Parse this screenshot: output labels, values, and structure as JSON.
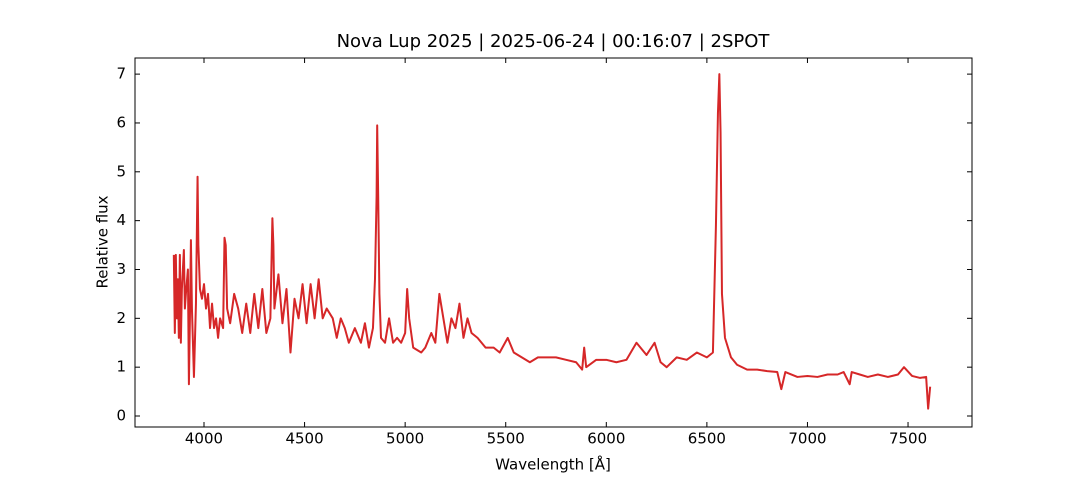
{
  "chart_data": {
    "type": "line",
    "title": "Nova Lup 2025 | 2025-06-24 | 00:16:07 | 2SPOT",
    "x_label": "Wavelength [Å]",
    "y_label": "Relative flux",
    "xlim": [
      3657,
      7818
    ],
    "ylim": [
      -0.225,
      7.33
    ],
    "xticks": [
      4000,
      4500,
      5000,
      5500,
      6000,
      6500,
      7000,
      7500
    ],
    "yticks": [
      0,
      1,
      2,
      3,
      4,
      5,
      6,
      7
    ],
    "series": [
      {
        "color": "#d62728",
        "x": [
          3850,
          3855,
          3860,
          3865,
          3870,
          3875,
          3880,
          3885,
          3890,
          3900,
          3905,
          3910,
          3920,
          3925,
          3930,
          3935,
          3940,
          3950,
          3960,
          3968,
          3972,
          3980,
          3990,
          4000,
          4010,
          4020,
          4030,
          4040,
          4050,
          4060,
          4070,
          4080,
          4095,
          4102,
          4108,
          4115,
          4130,
          4150,
          4170,
          4190,
          4210,
          4230,
          4250,
          4270,
          4290,
          4310,
          4330,
          4340,
          4345,
          4350,
          4370,
          4390,
          4410,
          4430,
          4450,
          4470,
          4490,
          4510,
          4530,
          4550,
          4570,
          4590,
          4610,
          4640,
          4660,
          4680,
          4700,
          4720,
          4750,
          4780,
          4800,
          4820,
          4840,
          4850,
          4858,
          4861,
          4866,
          4872,
          4880,
          4900,
          4920,
          4940,
          4960,
          4980,
          5000,
          5010,
          5020,
          5040,
          5080,
          5100,
          5130,
          5150,
          5170,
          5190,
          5210,
          5230,
          5250,
          5270,
          5290,
          5310,
          5330,
          5360,
          5400,
          5440,
          5470,
          5510,
          5540,
          5580,
          5620,
          5660,
          5700,
          5750,
          5800,
          5850,
          5880,
          5890,
          5900,
          5950,
          6000,
          6050,
          6100,
          6150,
          6200,
          6240,
          6270,
          6300,
          6350,
          6400,
          6450,
          6500,
          6530,
          6545,
          6555,
          6562,
          6568,
          6575,
          6590,
          6620,
          6650,
          6700,
          6750,
          6800,
          6850,
          6870,
          6890,
          6950,
          7000,
          7050,
          7100,
          7150,
          7180,
          7210,
          7220,
          7260,
          7300,
          7350,
          7400,
          7450,
          7480,
          7520,
          7560,
          7590,
          7600,
          7610
        ],
        "values": [
          3.3,
          1.7,
          3.3,
          2.0,
          2.8,
          1.6,
          3.3,
          1.5,
          2.6,
          3.4,
          2.2,
          2.5,
          3.0,
          0.65,
          2.0,
          3.6,
          2.2,
          0.8,
          2.3,
          4.9,
          3.5,
          2.6,
          2.4,
          2.7,
          2.2,
          2.5,
          1.8,
          2.3,
          1.8,
          2.0,
          1.6,
          2.0,
          1.8,
          3.65,
          3.5,
          2.2,
          1.9,
          2.5,
          2.2,
          1.7,
          2.3,
          1.7,
          2.5,
          1.8,
          2.6,
          1.7,
          2.0,
          4.05,
          3.5,
          2.2,
          2.9,
          1.9,
          2.6,
          1.3,
          2.4,
          2.0,
          2.7,
          1.9,
          2.7,
          2.0,
          2.8,
          2.0,
          2.2,
          2.0,
          1.6,
          2.0,
          1.8,
          1.5,
          1.8,
          1.5,
          1.9,
          1.4,
          1.8,
          2.8,
          4.5,
          5.95,
          4.5,
          2.5,
          1.6,
          1.5,
          2.0,
          1.5,
          1.6,
          1.5,
          1.7,
          2.6,
          2.0,
          1.4,
          1.3,
          1.4,
          1.7,
          1.5,
          2.5,
          2.0,
          1.5,
          2.0,
          1.8,
          2.3,
          1.6,
          2.0,
          1.7,
          1.6,
          1.4,
          1.4,
          1.3,
          1.6,
          1.3,
          1.2,
          1.1,
          1.2,
          1.2,
          1.2,
          1.15,
          1.1,
          0.95,
          1.4,
          1.0,
          1.15,
          1.15,
          1.1,
          1.15,
          1.5,
          1.25,
          1.5,
          1.1,
          1.0,
          1.2,
          1.15,
          1.3,
          1.2,
          1.3,
          3.9,
          6.2,
          7.0,
          5.8,
          2.5,
          1.6,
          1.2,
          1.05,
          0.95,
          0.95,
          0.92,
          0.9,
          0.55,
          0.9,
          0.8,
          0.82,
          0.8,
          0.85,
          0.85,
          0.9,
          0.65,
          0.9,
          0.85,
          0.8,
          0.85,
          0.8,
          0.85,
          1.0,
          0.82,
          0.78,
          0.8,
          0.15,
          0.6
        ]
      }
    ]
  }
}
